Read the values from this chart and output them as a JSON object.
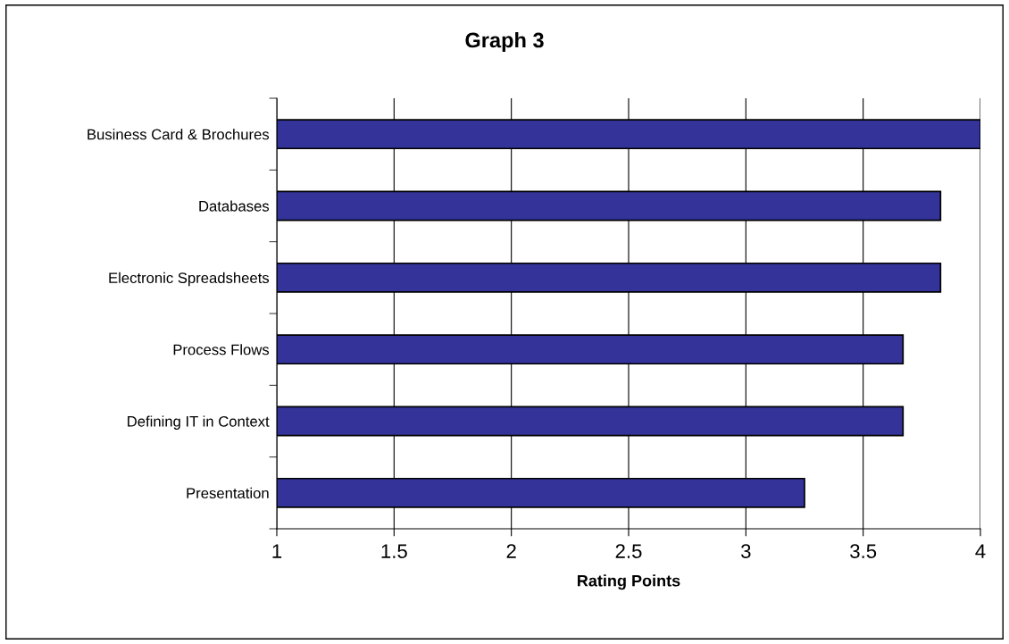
{
  "chart_data": {
    "type": "bar",
    "orientation": "horizontal",
    "title": "Graph 3",
    "xlabel": "Rating Points",
    "categories": [
      "Business Card & Brochures",
      "Databases",
      "Electronic Spreadsheets",
      "Process Flows",
      "Defining IT in Context",
      "Presentation"
    ],
    "values": [
      4.0,
      3.83,
      3.83,
      3.67,
      3.67,
      3.25
    ],
    "color": "#333399",
    "xlim": [
      1,
      4
    ],
    "xticks": [
      1,
      1.5,
      2,
      2.5,
      3,
      3.5,
      4
    ],
    "grid": "x",
    "legend": false
  }
}
